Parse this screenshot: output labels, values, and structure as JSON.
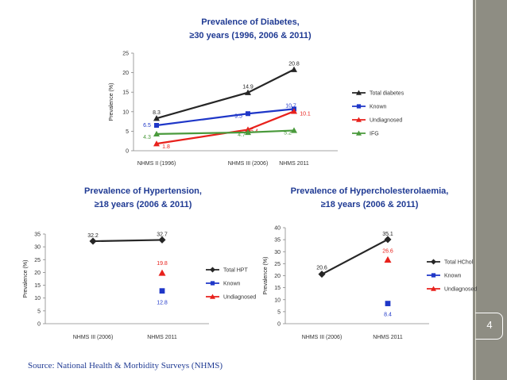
{
  "slide": {
    "source": "Source: National Health & Morbidity Surveys (NHMS)",
    "page_number": "4"
  },
  "chart_data": [
    {
      "type": "line",
      "title": "Prevalence of Diabetes,",
      "subtitle": "≥30 years (1996, 2006 & 2011)",
      "ylabel": "Prevalence (%)",
      "ylim": [
        0,
        25
      ],
      "yticks": [
        0,
        5,
        10,
        15,
        20,
        25
      ],
      "categories": [
        "NHMS II (1996)",
        "NHMS III (2006)",
        "NHMS 2011"
      ],
      "x": [
        1996,
        2006,
        2011
      ],
      "legend": "right",
      "series": [
        {
          "name": "Total diabetes",
          "values": [
            8.3,
            14.9,
            20.8
          ],
          "labels": [
            "8.3",
            "14.9",
            "20.8"
          ],
          "color": "#262626",
          "marker": "triangle"
        },
        {
          "name": "Known",
          "values": [
            6.5,
            9.5,
            10.7
          ],
          "labels": [
            "6.5",
            "9.5",
            "10.7"
          ],
          "color": "#1f37c8",
          "marker": "square"
        },
        {
          "name": "Undiagnosed",
          "values": [
            1.8,
            5.4,
            10.1
          ],
          "labels": [
            "1.8",
            "5.4",
            "10.1"
          ],
          "color": "#e8211c",
          "marker": "triangle"
        },
        {
          "name": "IFG",
          "values": [
            4.3,
            4.7,
            5.2
          ],
          "labels": [
            "4.3",
            "4.7",
            "5.2"
          ],
          "color": "#4a9a3c",
          "marker": "triangle"
        }
      ]
    },
    {
      "type": "line",
      "title": "Prevalence of Hypertension,",
      "subtitle": "≥18 years (2006 & 2011)",
      "ylabel": "Prevalence (%)",
      "ylim": [
        0,
        35
      ],
      "yticks": [
        0,
        5,
        10,
        15,
        20,
        25,
        30,
        35
      ],
      "categories": [
        "NHMS III (2006)",
        "NHMS 2011"
      ],
      "legend": "right",
      "series": [
        {
          "name": "Total HPT",
          "values": [
            32.2,
            32.7
          ],
          "labels": [
            "32.2",
            "32.7"
          ],
          "color": "#262626",
          "marker": "diamond"
        },
        {
          "name": "Known",
          "values": [
            null,
            12.8
          ],
          "labels": [
            "",
            "12.8"
          ],
          "color": "#1f37c8",
          "marker": "square"
        },
        {
          "name": "Undiagnosed",
          "values": [
            null,
            19.8
          ],
          "labels": [
            "",
            "19.8"
          ],
          "color": "#e8211c",
          "marker": "triangle"
        }
      ]
    },
    {
      "type": "line",
      "title": "Prevalence of Hypercholesterolaemia,",
      "subtitle": "≥18 years (2006 & 2011)",
      "ylabel": "Prevalence (%)",
      "ylim": [
        0,
        40
      ],
      "yticks": [
        0,
        5,
        10,
        15,
        20,
        25,
        30,
        35,
        40
      ],
      "categories": [
        "NHMS III (2006)",
        "NHMS 2011"
      ],
      "legend": "right",
      "series": [
        {
          "name": "Total HChol",
          "values": [
            20.6,
            35.1
          ],
          "labels": [
            "20.6",
            "35.1"
          ],
          "color": "#262626",
          "marker": "diamond"
        },
        {
          "name": "Known",
          "values": [
            null,
            8.4
          ],
          "labels": [
            "",
            "8.4"
          ],
          "color": "#1f37c8",
          "marker": "square"
        },
        {
          "name": "Undiagnosed",
          "values": [
            null,
            26.6
          ],
          "labels": [
            "",
            "26.6"
          ],
          "color": "#e8211c",
          "marker": "triangle"
        }
      ]
    }
  ]
}
